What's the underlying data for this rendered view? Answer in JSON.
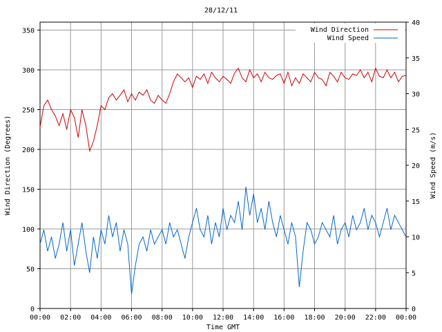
{
  "chart_data": {
    "type": "line",
    "title": "28/12/11",
    "xlabel": "Time GMT",
    "ylabel_left": "Wind Direction (Degrees)",
    "ylabel_right": "Wind Speed (m/s)",
    "x_ticks": [
      "00:00",
      "02:00",
      "04:00",
      "06:00",
      "08:00",
      "10:00",
      "12:00",
      "14:00",
      "16:00",
      "18:00",
      "20:00",
      "22:00",
      "00:00"
    ],
    "xlim_hours": [
      0,
      24
    ],
    "ylim_left": [
      0,
      360
    ],
    "ylim_right": [
      0,
      40
    ],
    "y_ticks_left": [
      0,
      50,
      100,
      150,
      200,
      250,
      300,
      350
    ],
    "y_ticks_right": [
      0,
      5,
      10,
      15,
      20,
      25,
      30,
      35,
      40
    ],
    "grid": true,
    "legend_position": "top-right",
    "series": [
      {
        "name": "Wind Direction",
        "axis": "left",
        "color": "#cc0000",
        "x": [
          0,
          0.25,
          0.5,
          0.75,
          1,
          1.25,
          1.5,
          1.75,
          2,
          2.25,
          2.5,
          2.75,
          3,
          3.25,
          3.5,
          3.75,
          4,
          4.25,
          4.5,
          4.75,
          5,
          5.25,
          5.5,
          5.75,
          6,
          6.25,
          6.5,
          6.75,
          7,
          7.25,
          7.5,
          7.75,
          8,
          8.25,
          8.5,
          8.75,
          9,
          9.25,
          9.5,
          9.75,
          10,
          10.25,
          10.5,
          10.75,
          11,
          11.25,
          11.5,
          11.75,
          12,
          12.25,
          12.5,
          12.75,
          13,
          13.25,
          13.5,
          13.75,
          14,
          14.25,
          14.5,
          14.75,
          15,
          15.25,
          15.5,
          15.75,
          16,
          16.25,
          16.5,
          16.75,
          17,
          17.25,
          17.5,
          17.75,
          18,
          18.25,
          18.5,
          18.75,
          19,
          19.25,
          19.5,
          19.75,
          20,
          20.25,
          20.5,
          20.75,
          21,
          21.25,
          21.5,
          21.75,
          22,
          22.25,
          22.5,
          22.75,
          23,
          23.25,
          23.5,
          23.75,
          24
        ],
        "values": [
          228,
          255,
          262,
          250,
          242,
          230,
          245,
          225,
          250,
          240,
          215,
          250,
          230,
          198,
          210,
          230,
          255,
          250,
          265,
          270,
          262,
          268,
          275,
          260,
          270,
          262,
          272,
          268,
          275,
          262,
          258,
          268,
          262,
          258,
          270,
          285,
          295,
          290,
          285,
          290,
          278,
          292,
          288,
          295,
          283,
          297,
          290,
          285,
          292,
          288,
          283,
          296,
          302,
          290,
          285,
          300,
          290,
          295,
          285,
          297,
          290,
          288,
          293,
          295,
          283,
          297,
          280,
          290,
          283,
          295,
          290,
          285,
          297,
          290,
          288,
          280,
          297,
          292,
          285,
          297,
          290,
          288,
          295,
          293,
          300,
          290,
          297,
          285,
          302,
          292,
          290,
          300,
          290,
          297,
          285,
          292,
          293
        ]
      },
      {
        "name": "Wind Speed",
        "axis": "right",
        "color": "#0066cc",
        "x": [
          0,
          0.25,
          0.5,
          0.75,
          1,
          1.25,
          1.5,
          1.75,
          2,
          2.25,
          2.5,
          2.75,
          3,
          3.25,
          3.5,
          3.75,
          4,
          4.25,
          4.5,
          4.75,
          5,
          5.25,
          5.5,
          5.75,
          6,
          6.25,
          6.5,
          6.75,
          7,
          7.25,
          7.5,
          7.75,
          8,
          8.25,
          8.5,
          8.75,
          9,
          9.25,
          9.5,
          9.75,
          10,
          10.25,
          10.5,
          10.75,
          11,
          11.25,
          11.5,
          11.75,
          12,
          12.25,
          12.5,
          12.75,
          13,
          13.25,
          13.5,
          13.75,
          14,
          14.25,
          14.5,
          14.75,
          15,
          15.25,
          15.5,
          15.75,
          16,
          16.25,
          16.5,
          16.75,
          17,
          17.25,
          17.5,
          17.75,
          18,
          18.25,
          18.5,
          18.75,
          19,
          19.25,
          19.5,
          19.75,
          20,
          20.25,
          20.5,
          20.75,
          21,
          21.25,
          21.5,
          21.75,
          22,
          22.25,
          22.5,
          22.75,
          23,
          23.25,
          23.5,
          23.75,
          24
        ],
        "values": [
          9,
          11,
          8,
          10,
          7,
          9,
          12,
          8,
          11,
          6,
          9,
          12,
          8,
          5,
          10,
          7,
          11,
          9,
          13,
          10,
          12,
          8,
          11,
          9,
          2,
          6,
          9,
          10,
          8,
          11,
          9,
          10,
          11,
          9,
          12,
          10,
          11,
          9,
          7,
          10,
          12,
          14,
          11,
          10,
          13,
          9,
          12,
          10,
          14,
          11,
          13,
          12,
          15,
          11,
          17,
          13,
          16,
          12,
          14,
          11,
          15,
          12,
          10,
          13,
          11,
          9,
          12,
          10,
          3,
          8,
          12,
          11,
          9,
          10,
          12,
          11,
          10,
          13,
          9,
          11,
          12,
          10,
          13,
          11,
          12,
          14,
          11,
          13,
          12,
          10,
          12,
          14,
          11,
          13,
          12,
          11,
          10
        ]
      }
    ]
  }
}
